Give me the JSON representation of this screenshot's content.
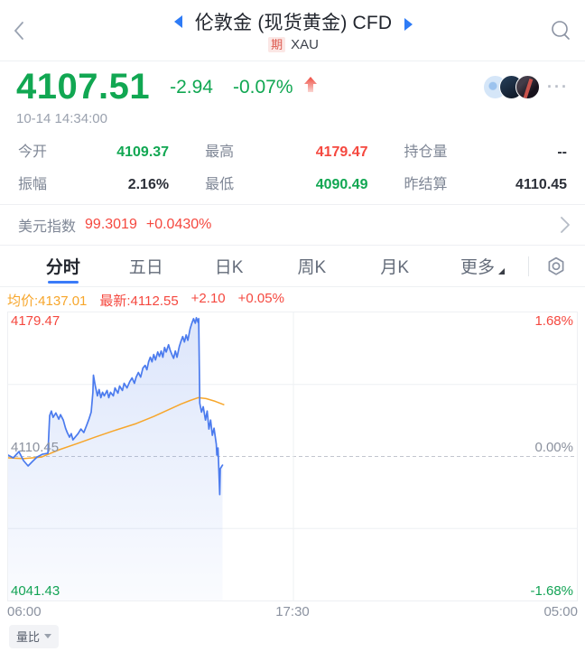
{
  "header": {
    "title": "伦敦金 (现货黄金) CFD",
    "badge": "期",
    "symbol": "XAU"
  },
  "quote": {
    "price": "4107.51",
    "change": "-2.94",
    "change_pct": "-0.07%",
    "timestamp": "10-14 14:34:00",
    "more_label": "···"
  },
  "stats": [
    {
      "label": "今开",
      "value": "4109.37",
      "color": "green"
    },
    {
      "label": "最高",
      "value": "4179.47",
      "color": "red"
    },
    {
      "label": "持仓量",
      "value": "--",
      "color": "dark"
    },
    {
      "label": "振幅",
      "value": "2.16%",
      "color": "dark"
    },
    {
      "label": "最低",
      "value": "4090.49",
      "color": "green"
    },
    {
      "label": "昨结算",
      "value": "4110.45",
      "color": "dark"
    }
  ],
  "usd_index": {
    "label": "美元指数",
    "value": "99.3019",
    "change": "+0.0430%"
  },
  "tabs": {
    "items": [
      "分时",
      "五日",
      "日K",
      "周K",
      "月K",
      "更多"
    ],
    "active_index": 0
  },
  "chart_header": {
    "avg": "均价:4137.01",
    "last": "最新:4112.55",
    "change": "+2.10",
    "change_pct": "+0.05%"
  },
  "chart_data": {
    "type": "line",
    "title": "分时 (intraday) 伦敦金 XAU",
    "ylim": [
      4041.43,
      4179.47
    ],
    "baseline": 4110.45,
    "y_left_labels": [
      "4179.47",
      "4110.45",
      "4041.43"
    ],
    "y_right_labels": [
      "1.68%",
      "0.00%",
      "-1.68%"
    ],
    "x_labels": [
      "06:00",
      "17:30",
      "05:00"
    ],
    "x_gridline_frac": 0.502,
    "series": [
      {
        "name": "price",
        "color": "#4b7bee",
        "points": [
          [
            0,
            4111.1
          ],
          [
            0.009,
            4109.8
          ],
          [
            0.019,
            4112.8
          ],
          [
            0.027,
            4108.5
          ],
          [
            0.035,
            4105.9
          ],
          [
            0.043,
            4108.1
          ],
          [
            0.051,
            4110.2
          ],
          [
            0.06,
            4111.5
          ],
          [
            0.07,
            4112.0
          ],
          [
            0.073,
            4130.0
          ],
          [
            0.076,
            4132.2
          ],
          [
            0.079,
            4129.2
          ],
          [
            0.084,
            4131.3
          ],
          [
            0.089,
            4128.3
          ],
          [
            0.092,
            4130.5
          ],
          [
            0.097,
            4127.9
          ],
          [
            0.101,
            4124.0
          ],
          [
            0.104,
            4121.9
          ],
          [
            0.108,
            4119.7
          ],
          [
            0.111,
            4121.4
          ],
          [
            0.114,
            4118.4
          ],
          [
            0.119,
            4120.1
          ],
          [
            0.123,
            4121.4
          ],
          [
            0.128,
            4123.6
          ],
          [
            0.133,
            4121.9
          ],
          [
            0.138,
            4125.3
          ],
          [
            0.142,
            4128.3
          ],
          [
            0.146,
            4131.7
          ],
          [
            0.149,
            4141.2
          ],
          [
            0.15,
            4149.4
          ],
          [
            0.153,
            4144.6
          ],
          [
            0.157,
            4139.5
          ],
          [
            0.16,
            4142.5
          ],
          [
            0.163,
            4138.6
          ],
          [
            0.166,
            4141.2
          ],
          [
            0.169,
            4139.5
          ],
          [
            0.174,
            4142.1
          ],
          [
            0.177,
            4138.6
          ],
          [
            0.18,
            4141.2
          ],
          [
            0.185,
            4139.5
          ],
          [
            0.188,
            4143.3
          ],
          [
            0.193,
            4140.8
          ],
          [
            0.196,
            4144.2
          ],
          [
            0.201,
            4142.1
          ],
          [
            0.204,
            4145.5
          ],
          [
            0.209,
            4143.3
          ],
          [
            0.214,
            4146.4
          ],
          [
            0.218,
            4148.1
          ],
          [
            0.222,
            4145.5
          ],
          [
            0.225,
            4148.5
          ],
          [
            0.229,
            4150.7
          ],
          [
            0.233,
            4148.5
          ],
          [
            0.237,
            4152.8
          ],
          [
            0.241,
            4154.1
          ],
          [
            0.244,
            4152.0
          ],
          [
            0.247,
            4155.8
          ],
          [
            0.25,
            4158.0
          ],
          [
            0.253,
            4155.8
          ],
          [
            0.256,
            4159.3
          ],
          [
            0.259,
            4156.7
          ],
          [
            0.263,
            4160.5
          ],
          [
            0.266,
            4158.4
          ],
          [
            0.269,
            4161.0
          ],
          [
            0.272,
            4158.0
          ],
          [
            0.275,
            4162.7
          ],
          [
            0.278,
            4160.5
          ],
          [
            0.282,
            4164.0
          ],
          [
            0.285,
            4161.4
          ],
          [
            0.288,
            4159.3
          ],
          [
            0.291,
            4157.5
          ],
          [
            0.294,
            4161.0
          ],
          [
            0.297,
            4158.0
          ],
          [
            0.301,
            4163.1
          ],
          [
            0.304,
            4165.7
          ],
          [
            0.307,
            4167.9
          ],
          [
            0.31,
            4165.3
          ],
          [
            0.313,
            4168.7
          ],
          [
            0.316,
            4166.1
          ],
          [
            0.32,
            4171.7
          ],
          [
            0.323,
            4174.3
          ],
          [
            0.326,
            4176.5
          ],
          [
            0.329,
            4174.3
          ],
          [
            0.331,
            4176.9
          ],
          [
            0.334,
            4174.7
          ],
          [
            0.335,
            4176.5
          ],
          [
            0.337,
            4136.0
          ],
          [
            0.34,
            4131.7
          ],
          [
            0.343,
            4134.3
          ],
          [
            0.347,
            4127.9
          ],
          [
            0.35,
            4132.2
          ],
          [
            0.353,
            4123.6
          ],
          [
            0.356,
            4127.9
          ],
          [
            0.359,
            4120.6
          ],
          [
            0.362,
            4124.0
          ],
          [
            0.366,
            4116.3
          ],
          [
            0.367,
            4111.1
          ],
          [
            0.369,
            4114.5
          ],
          [
            0.37,
            4107.7
          ],
          [
            0.372,
            4092.2
          ],
          [
            0.373,
            4104.6
          ],
          [
            0.377,
            4106.3
          ]
        ]
      },
      {
        "name": "average",
        "color": "#f7a62b",
        "points": [
          [
            0,
            4109.8
          ],
          [
            0.027,
            4109.4
          ],
          [
            0.059,
            4110.2
          ],
          [
            0.09,
            4113.7
          ],
          [
            0.122,
            4116.7
          ],
          [
            0.153,
            4119.7
          ],
          [
            0.185,
            4122.7
          ],
          [
            0.225,
            4126.2
          ],
          [
            0.256,
            4129.6
          ],
          [
            0.28,
            4132.6
          ],
          [
            0.304,
            4135.6
          ],
          [
            0.32,
            4137.3
          ],
          [
            0.334,
            4138.6
          ],
          [
            0.348,
            4138.2
          ],
          [
            0.364,
            4136.9
          ],
          [
            0.38,
            4135.2
          ]
        ]
      }
    ]
  },
  "footer": {
    "volume_button": "量比"
  },
  "colors": {
    "up": "#f5483f",
    "down": "#11a752",
    "accent_blue": "#2e7bf6",
    "avg_orange": "#f7a62b"
  }
}
